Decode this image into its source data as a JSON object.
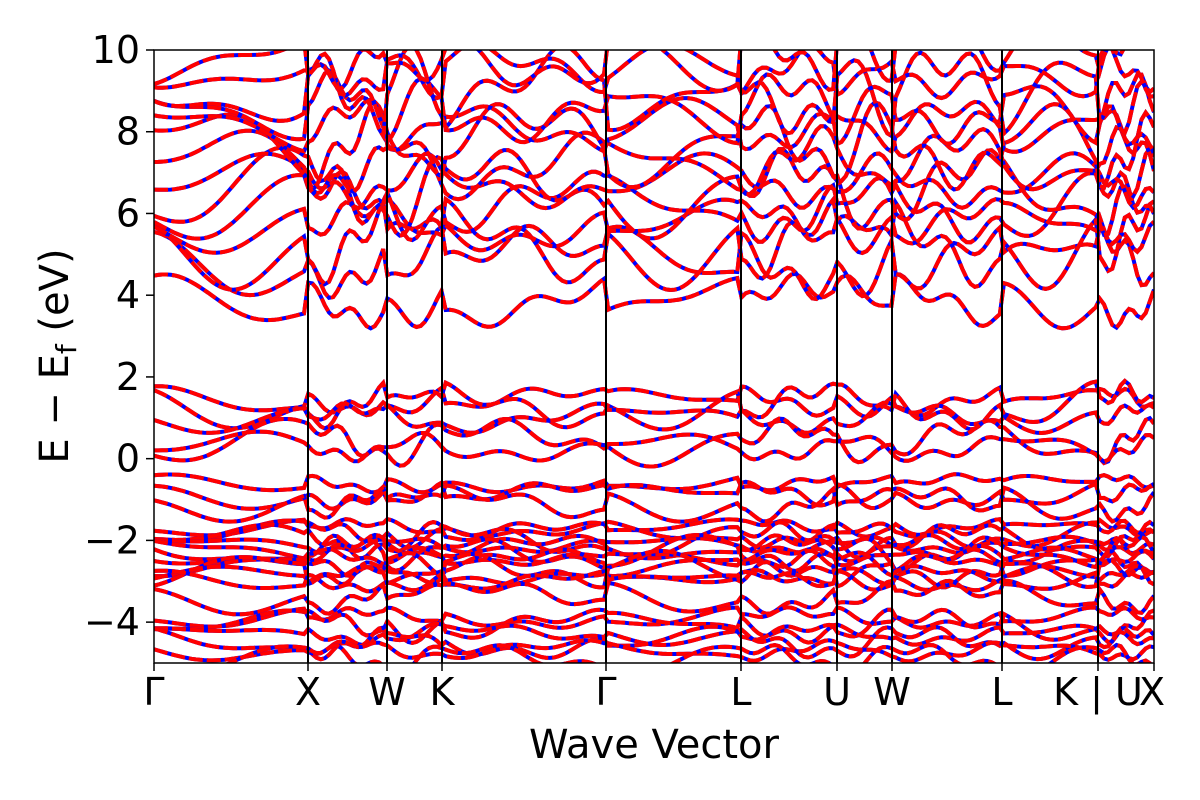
{
  "chart_data": {
    "type": "line",
    "title": "",
    "xlabel": "Wave Vector",
    "ylabel": "E − E_f (eV)",
    "ylabel_parts": {
      "prefix": "E − E",
      "subscript": "f",
      "suffix": " (eV)"
    },
    "ylim": [
      -5,
      10
    ],
    "yticks": [
      -4,
      -2,
      0,
      2,
      4,
      6,
      8,
      10
    ],
    "ytick_labels": [
      "−4",
      "−2",
      "0",
      "2",
      "4",
      "6",
      "8",
      "10"
    ],
    "high_symmetry_points": [
      {
        "label": "Γ",
        "k": 0.0
      },
      {
        "label": "X",
        "k": 0.154
      },
      {
        "label": "W",
        "k": 0.233
      },
      {
        "label": "K",
        "k": 0.288
      },
      {
        "label": "Γ",
        "k": 0.452
      },
      {
        "label": "L",
        "k": 0.587
      },
      {
        "label": "U",
        "k": 0.683
      },
      {
        "label": "W",
        "k": 0.738
      },
      {
        "label": "L",
        "k": 0.848
      },
      {
        "label": "K | U",
        "k": 0.944
      },
      {
        "label": "X",
        "k": 1.0
      }
    ],
    "xlim": [
      0,
      1
    ],
    "grid": false,
    "legend": "none",
    "series_colors": {
      "spin_down": "#0000ff",
      "spin_up": "#ff0000"
    },
    "line_style": {
      "spin_up": "dashed",
      "spin_down": "solid"
    },
    "band_groups": {
      "conduction": [
        3.85,
        4.8,
        5.25,
        5.7,
        6.15,
        6.5,
        6.8,
        7.25,
        7.7,
        8.15,
        8.6,
        9.0,
        9.5,
        9.9
      ],
      "upper_valence": [
        1.4,
        1.3,
        1.0,
        0.4,
        0.3
      ],
      "d_bands": [
        -0.6,
        -0.9,
        -1.1,
        -1.7,
        -1.85,
        -2.0,
        -2.1,
        -2.2,
        -2.3,
        -2.4,
        -2.55,
        -2.7,
        -2.85
      ],
      "lower_valence": [
        -3.0,
        -3.4,
        -3.9,
        -4.1,
        -4.3,
        -4.5,
        -4.7,
        -4.9
      ]
    }
  }
}
